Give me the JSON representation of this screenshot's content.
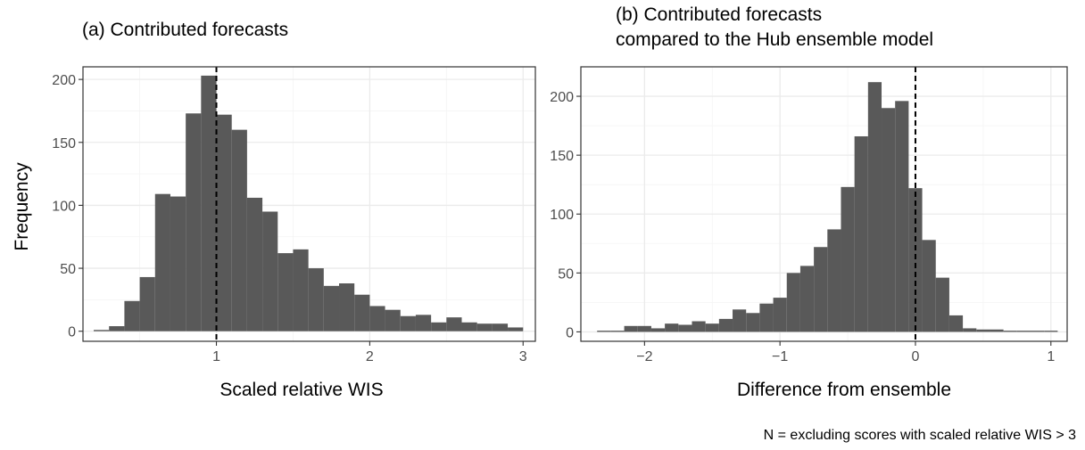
{
  "chart_data": [
    {
      "type": "bar",
      "title": "(a) Contributed forecasts",
      "xlabel": "Scaled relative WIS",
      "ylabel": "Frequency",
      "xlim": [
        0.13,
        3.08
      ],
      "ylim": [
        -8,
        210
      ],
      "xticks": [
        1,
        2,
        3
      ],
      "yticks": [
        0,
        50,
        100,
        150,
        200
      ],
      "reference_line_x": 1,
      "grid": true,
      "bin_width": 0.1,
      "bin_starts": [
        0.2,
        0.3,
        0.4,
        0.5,
        0.6,
        0.7,
        0.8,
        0.9,
        1.0,
        1.1,
        1.2,
        1.3,
        1.4,
        1.5,
        1.6,
        1.7,
        1.8,
        1.9,
        2.0,
        2.1,
        2.2,
        2.3,
        2.4,
        2.5,
        2.6,
        2.7,
        2.8,
        2.9
      ],
      "values": [
        1,
        4,
        24,
        43,
        109,
        107,
        173,
        203,
        172,
        160,
        106,
        95,
        62,
        65,
        50,
        36,
        38,
        29,
        20,
        17,
        12,
        13,
        7,
        11,
        7,
        6,
        6,
        3
      ]
    },
    {
      "type": "bar",
      "title": "(b) Contributed forecasts",
      "subtitle": "compared to the Hub ensemble model",
      "xlabel": "Difference from ensemble",
      "ylabel": "",
      "xlim": [
        -2.47,
        1.12
      ],
      "ylim": [
        -8,
        225
      ],
      "xticks": [
        -2,
        -1,
        0,
        1
      ],
      "yticks": [
        0,
        50,
        100,
        150,
        200
      ],
      "reference_line_x": 0,
      "grid": true,
      "bin_width": 0.1,
      "bin_starts": [
        -2.35,
        -2.25,
        -2.15,
        -2.05,
        -1.95,
        -1.85,
        -1.75,
        -1.65,
        -1.55,
        -1.45,
        -1.35,
        -1.25,
        -1.15,
        -1.05,
        -0.95,
        -0.85,
        -0.75,
        -0.65,
        -0.55,
        -0.45,
        -0.35,
        -0.25,
        -0.15,
        -0.05,
        0.05,
        0.15,
        0.25,
        0.35,
        0.45,
        0.55,
        0.65,
        0.75,
        0.85,
        0.95
      ],
      "values": [
        1,
        1,
        5,
        5,
        3,
        7,
        6,
        9,
        7,
        11,
        19,
        16,
        24,
        29,
        50,
        56,
        72,
        87,
        123,
        166,
        212,
        190,
        196,
        122,
        78,
        46,
        14,
        3,
        2,
        2,
        1,
        1,
        1,
        1
      ]
    }
  ],
  "x_tick_labels": {
    "left": [
      "1",
      "2",
      "3"
    ],
    "right": [
      "−2",
      "−1",
      "0",
      "1"
    ]
  },
  "y_tick_labels": [
    "0",
    "50",
    "100",
    "150",
    "200"
  ],
  "caption": "N =  excluding  scores with scaled relative WIS > 3"
}
